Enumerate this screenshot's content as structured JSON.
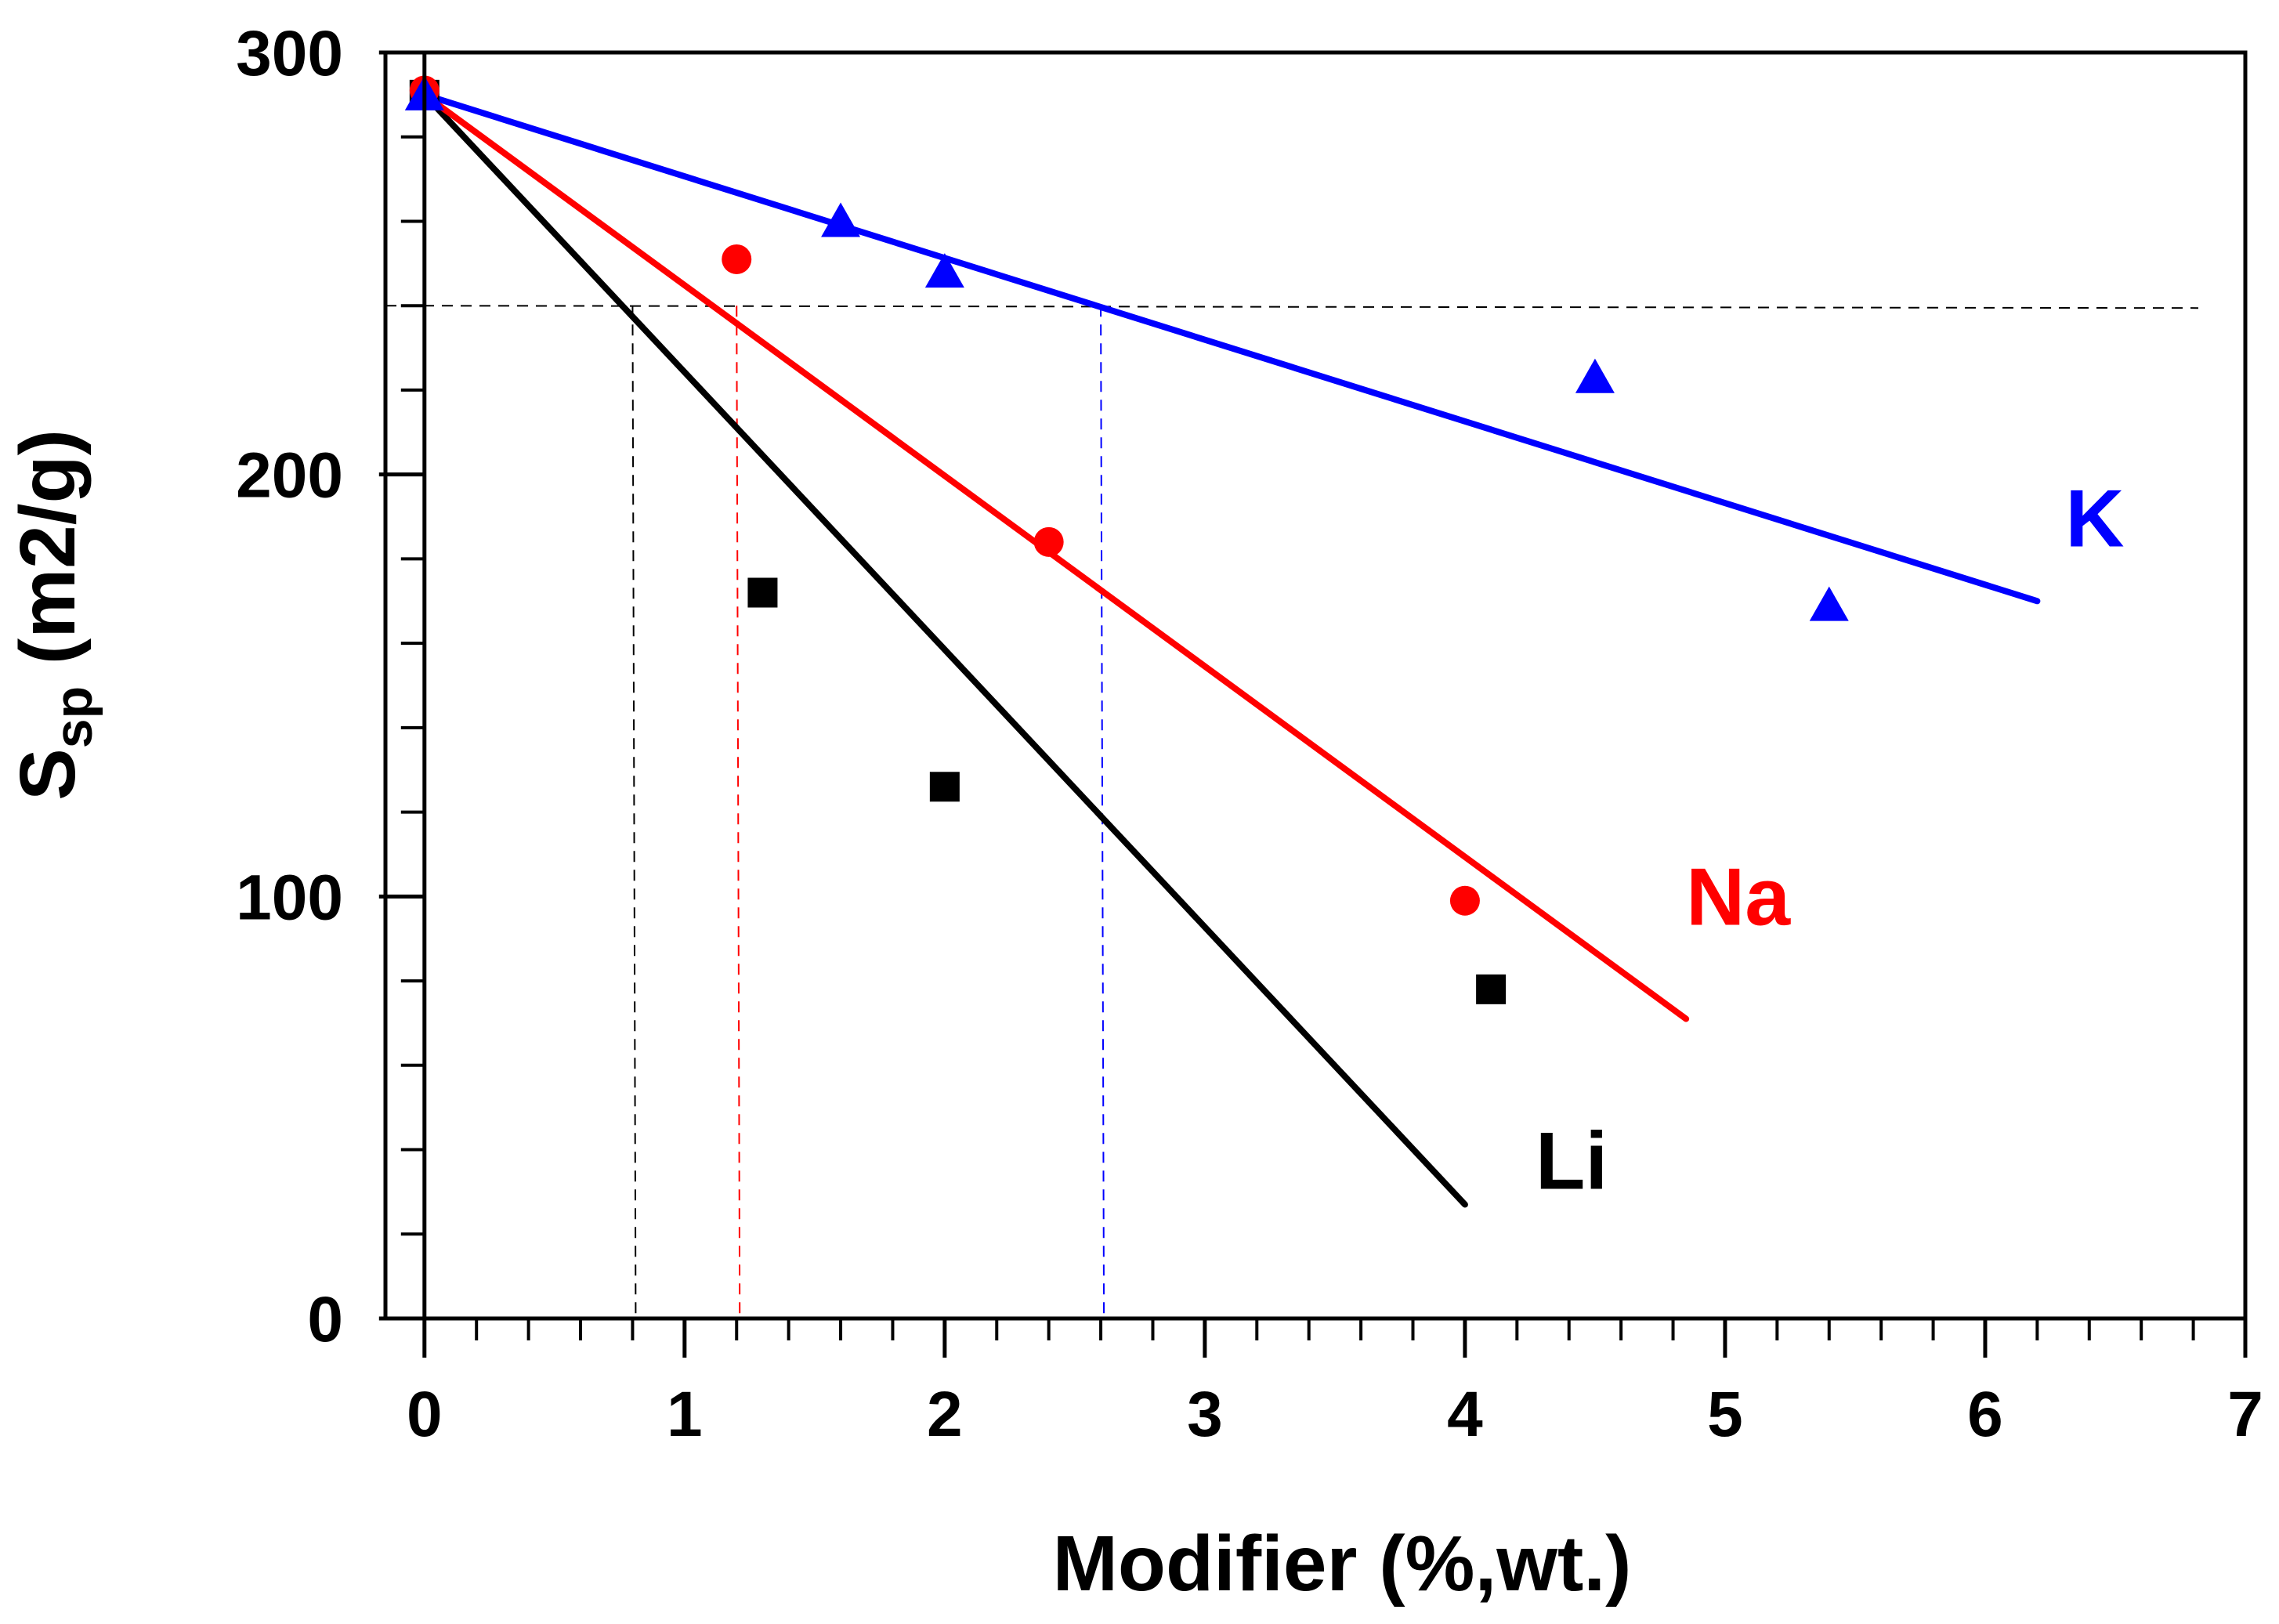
{
  "chart_data": {
    "type": "scatter",
    "title": "",
    "xlabel": "Modifier (%,wt.)",
    "ylabel_main": "S",
    "ylabel_sub": "sp",
    "ylabel_units": " (m2/g)",
    "xlim": [
      -0.15,
      7
    ],
    "ylim": [
      0,
      300
    ],
    "x_ticks": [
      "0",
      "1",
      "2",
      "3",
      "4",
      "5",
      "6",
      "7"
    ],
    "y_ticks": [
      "0",
      "100",
      "200",
      "300"
    ],
    "reference_y": 240,
    "series": [
      {
        "name": "Li",
        "color": "#000000",
        "marker": "square",
        "points": [
          [
            0,
            290
          ],
          [
            1.3,
            172
          ],
          [
            2.0,
            126
          ],
          [
            4.1,
            78
          ]
        ],
        "fit_line": [
          [
            0,
            290
          ],
          [
            4.0,
            27
          ]
        ],
        "reference_x": 0.8
      },
      {
        "name": "Na",
        "color": "#ff0000",
        "marker": "circle",
        "points": [
          [
            0,
            291
          ],
          [
            1.2,
            251
          ],
          [
            2.4,
            184
          ],
          [
            4.0,
            99
          ]
        ],
        "fit_line": [
          [
            0,
            290
          ],
          [
            4.85,
            71
          ]
        ],
        "reference_x": 1.2
      },
      {
        "name": "K",
        "color": "#0000ff",
        "marker": "triangle",
        "points": [
          [
            0,
            290
          ],
          [
            1.6,
            260
          ],
          [
            2.0,
            248
          ],
          [
            4.5,
            223
          ],
          [
            5.4,
            169
          ]
        ],
        "fit_line": [
          [
            0,
            290
          ],
          [
            6.2,
            170
          ]
        ],
        "reference_x": 2.6
      }
    ]
  }
}
